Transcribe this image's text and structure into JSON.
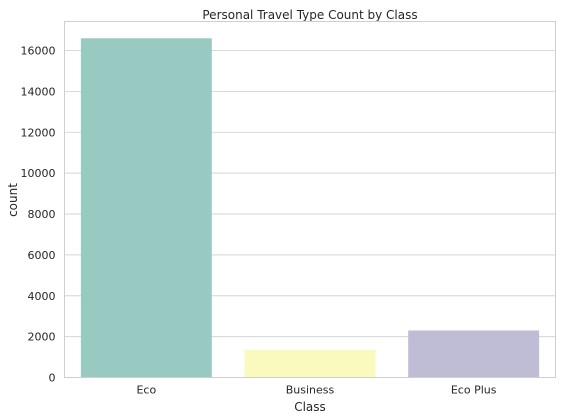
{
  "chart_data": {
    "type": "bar",
    "title": "Personal Travel Type Count by Class",
    "xlabel": "Class",
    "ylabel": "count",
    "categories": [
      "Eco",
      "Business",
      "Eco Plus"
    ],
    "values": [
      16600,
      1350,
      2300
    ],
    "ylim": [
      0,
      17420
    ],
    "yticks": [
      0,
      2000,
      4000,
      6000,
      8000,
      10000,
      12000,
      14000,
      16000
    ],
    "grid": true,
    "colors": [
      "#98cac2",
      "#fafabe",
      "#bfbcd5"
    ]
  }
}
